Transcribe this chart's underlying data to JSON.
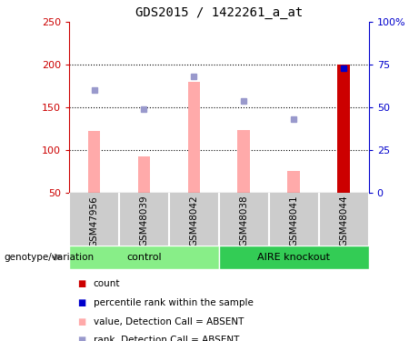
{
  "title": "GDS2015 / 1422261_a_at",
  "samples": [
    "GSM47956",
    "GSM48039",
    "GSM48042",
    "GSM48038",
    "GSM48041",
    "GSM48044"
  ],
  "pink_bar_values": [
    122,
    93,
    180,
    124,
    75,
    200
  ],
  "red_bar_index": 5,
  "blue_square_rank": [
    60,
    49,
    68,
    54,
    43,
    73
  ],
  "blue_marker_rank": 73,
  "ylim_left": [
    50,
    250
  ],
  "ylim_right": [
    0,
    100
  ],
  "yticks_left": [
    50,
    100,
    150,
    200,
    250
  ],
  "yticks_right": [
    0,
    25,
    50,
    75,
    100
  ],
  "ytick_labels_right": [
    "0",
    "25",
    "50",
    "75",
    "100%"
  ],
  "color_pink": "#ffaaaa",
  "color_red": "#cc0000",
  "color_blue_square": "#9999cc",
  "color_blue_marker": "#0000cc",
  "left_axis_color": "#cc0000",
  "right_axis_color": "#0000cc",
  "control_color": "#88ee88",
  "knockout_color": "#33cc55",
  "sample_bg_color": "#cccccc",
  "bar_width": 0.25,
  "genotype_label": "genotype/variation",
  "group_labels": [
    "control",
    "AIRE knockout"
  ],
  "group_ranges": [
    [
      0,
      2
    ],
    [
      3,
      5
    ]
  ],
  "legend_colors": [
    "#cc0000",
    "#0000cc",
    "#ffaaaa",
    "#9999cc"
  ],
  "legend_labels": [
    "count",
    "percentile rank within the sample",
    "value, Detection Call = ABSENT",
    "rank, Detection Call = ABSENT"
  ]
}
